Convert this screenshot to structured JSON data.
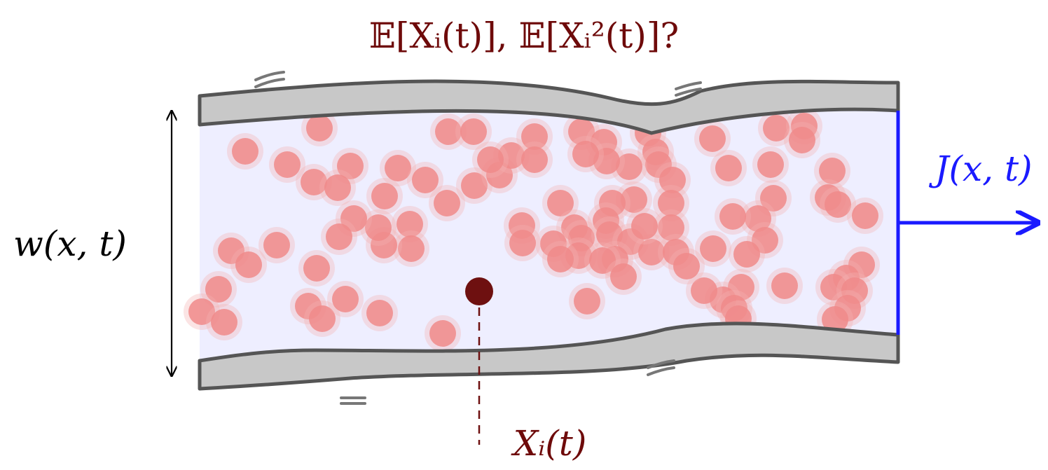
{
  "title": "𝔼[Xᵢ(t)], 𝔼[Xᵢ²(t)]?",
  "labels": {
    "width": "w(x, t)",
    "flux": "J(x, t)",
    "tracer": "Xᵢ(t)"
  },
  "colors": {
    "wall_fill": "#c8c8c8",
    "wall_stroke": "#555555",
    "channel_fill": "#eeeeff",
    "particle": "#f08a8a",
    "tracer": "#6e1010",
    "flux": "#1a1aff",
    "title": "#6e0a0a"
  }
}
